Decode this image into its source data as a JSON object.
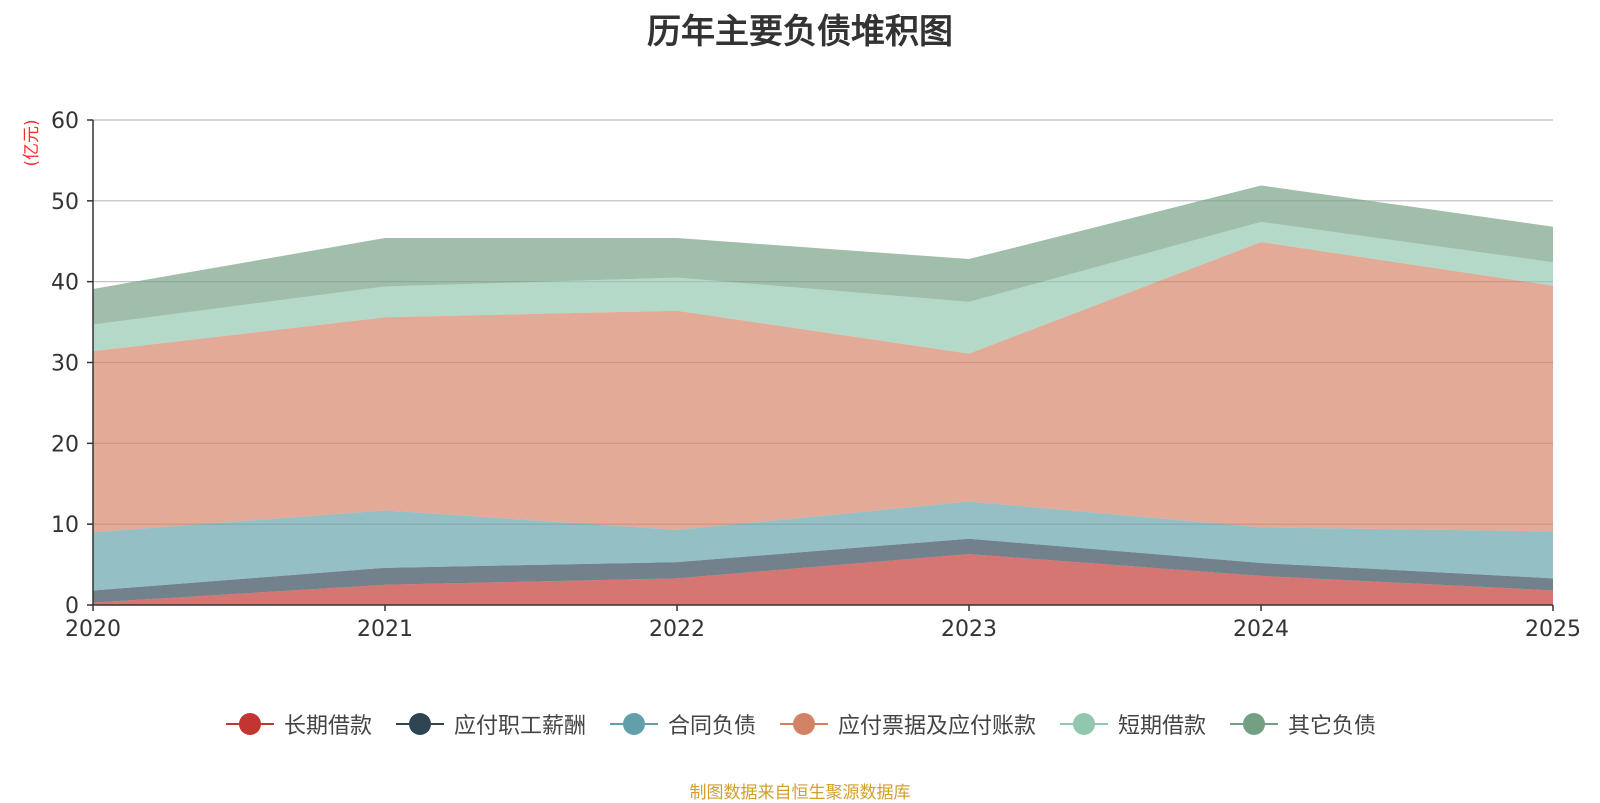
{
  "chart_data": {
    "type": "area",
    "stacked": true,
    "title": "历年主要负债堆积图",
    "ylabel": "(亿元)",
    "xlabel": "",
    "ylim": [
      0,
      60
    ],
    "yticks": [
      0,
      10,
      20,
      30,
      40,
      50,
      60
    ],
    "categories": [
      "2020",
      "2021",
      "2022",
      "2023",
      "2024",
      "2025"
    ],
    "series": [
      {
        "name": "长期借款",
        "color": "#c23531",
        "values": [
          0.3,
          2.5,
          3.3,
          6.3,
          3.6,
          1.8
        ]
      },
      {
        "name": "应付职工薪酬",
        "color": "#2f4554",
        "values": [
          1.5,
          2.1,
          2.0,
          1.9,
          1.6,
          1.5
        ]
      },
      {
        "name": "合同负债",
        "color": "#61a0a8",
        "values": [
          7.2,
          7.1,
          4.0,
          4.6,
          4.4,
          5.8
        ]
      },
      {
        "name": "应付票据及应付账款",
        "color": "#d48265",
        "values": [
          22.4,
          23.9,
          27.1,
          18.3,
          35.3,
          30.4
        ]
      },
      {
        "name": "短期借款",
        "color": "#91c7ae",
        "values": [
          3.3,
          3.8,
          4.1,
          6.4,
          2.5,
          2.9
        ]
      },
      {
        "name": "其它负债",
        "color": "#749f83",
        "values": [
          4.4,
          6.0,
          4.9,
          5.3,
          4.5,
          4.4
        ]
      }
    ],
    "legend_position": "bottom",
    "grid": true
  },
  "source_note": "制图数据来自恒生聚源数据库"
}
